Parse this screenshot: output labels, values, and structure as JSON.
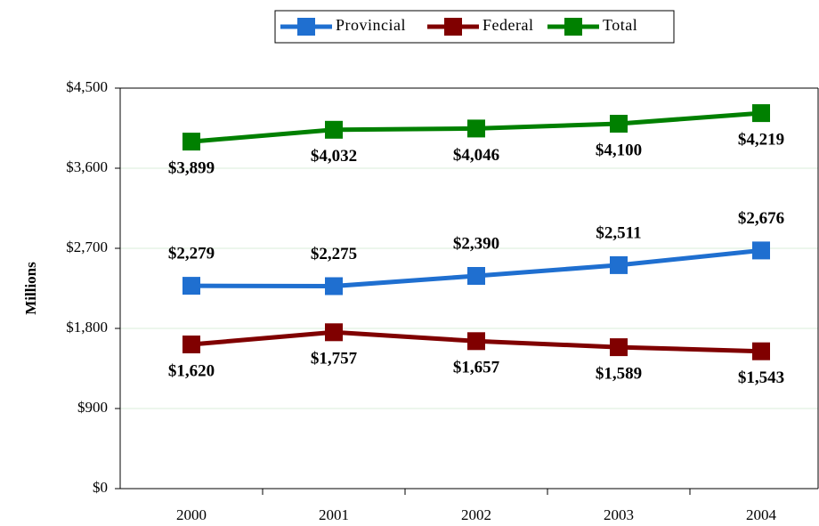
{
  "chart_data": {
    "type": "line",
    "y_axis_label": "Millions",
    "categories": [
      "2000",
      "2001",
      "2002",
      "2003",
      "2004"
    ],
    "series": [
      {
        "name": "Provincial",
        "color": "#1f6fd0",
        "values": [
          2279,
          2275,
          2390,
          2511,
          2676
        ],
        "value_labels": [
          "$2,279",
          "$2,275",
          "$2,390",
          "$2,511",
          "$2,676"
        ]
      },
      {
        "name": "Federal",
        "color": "#800000",
        "values": [
          1620,
          1757,
          1657,
          1589,
          1543
        ],
        "value_labels": [
          "$1,620",
          "$1,757",
          "$1,657",
          "$1,589",
          "$1,543"
        ]
      },
      {
        "name": "Total",
        "color": "#008000",
        "values": [
          3899,
          4032,
          4046,
          4100,
          4219
        ],
        "value_labels": [
          "$3,899",
          "$4,032",
          "$4,046",
          "$4,100",
          "$4,219"
        ]
      }
    ],
    "ylim": [
      0,
      4500
    ],
    "yticks": [
      {
        "value": 0,
        "label": "$0"
      },
      {
        "value": 900,
        "label": "$900"
      },
      {
        "value": 1800,
        "label": "$1,800"
      },
      {
        "value": 2700,
        "label": "$2,700"
      },
      {
        "value": 3600,
        "label": "$3,600"
      },
      {
        "value": 4500,
        "label": "$4,500"
      }
    ],
    "grid": true,
    "legend": "top"
  }
}
